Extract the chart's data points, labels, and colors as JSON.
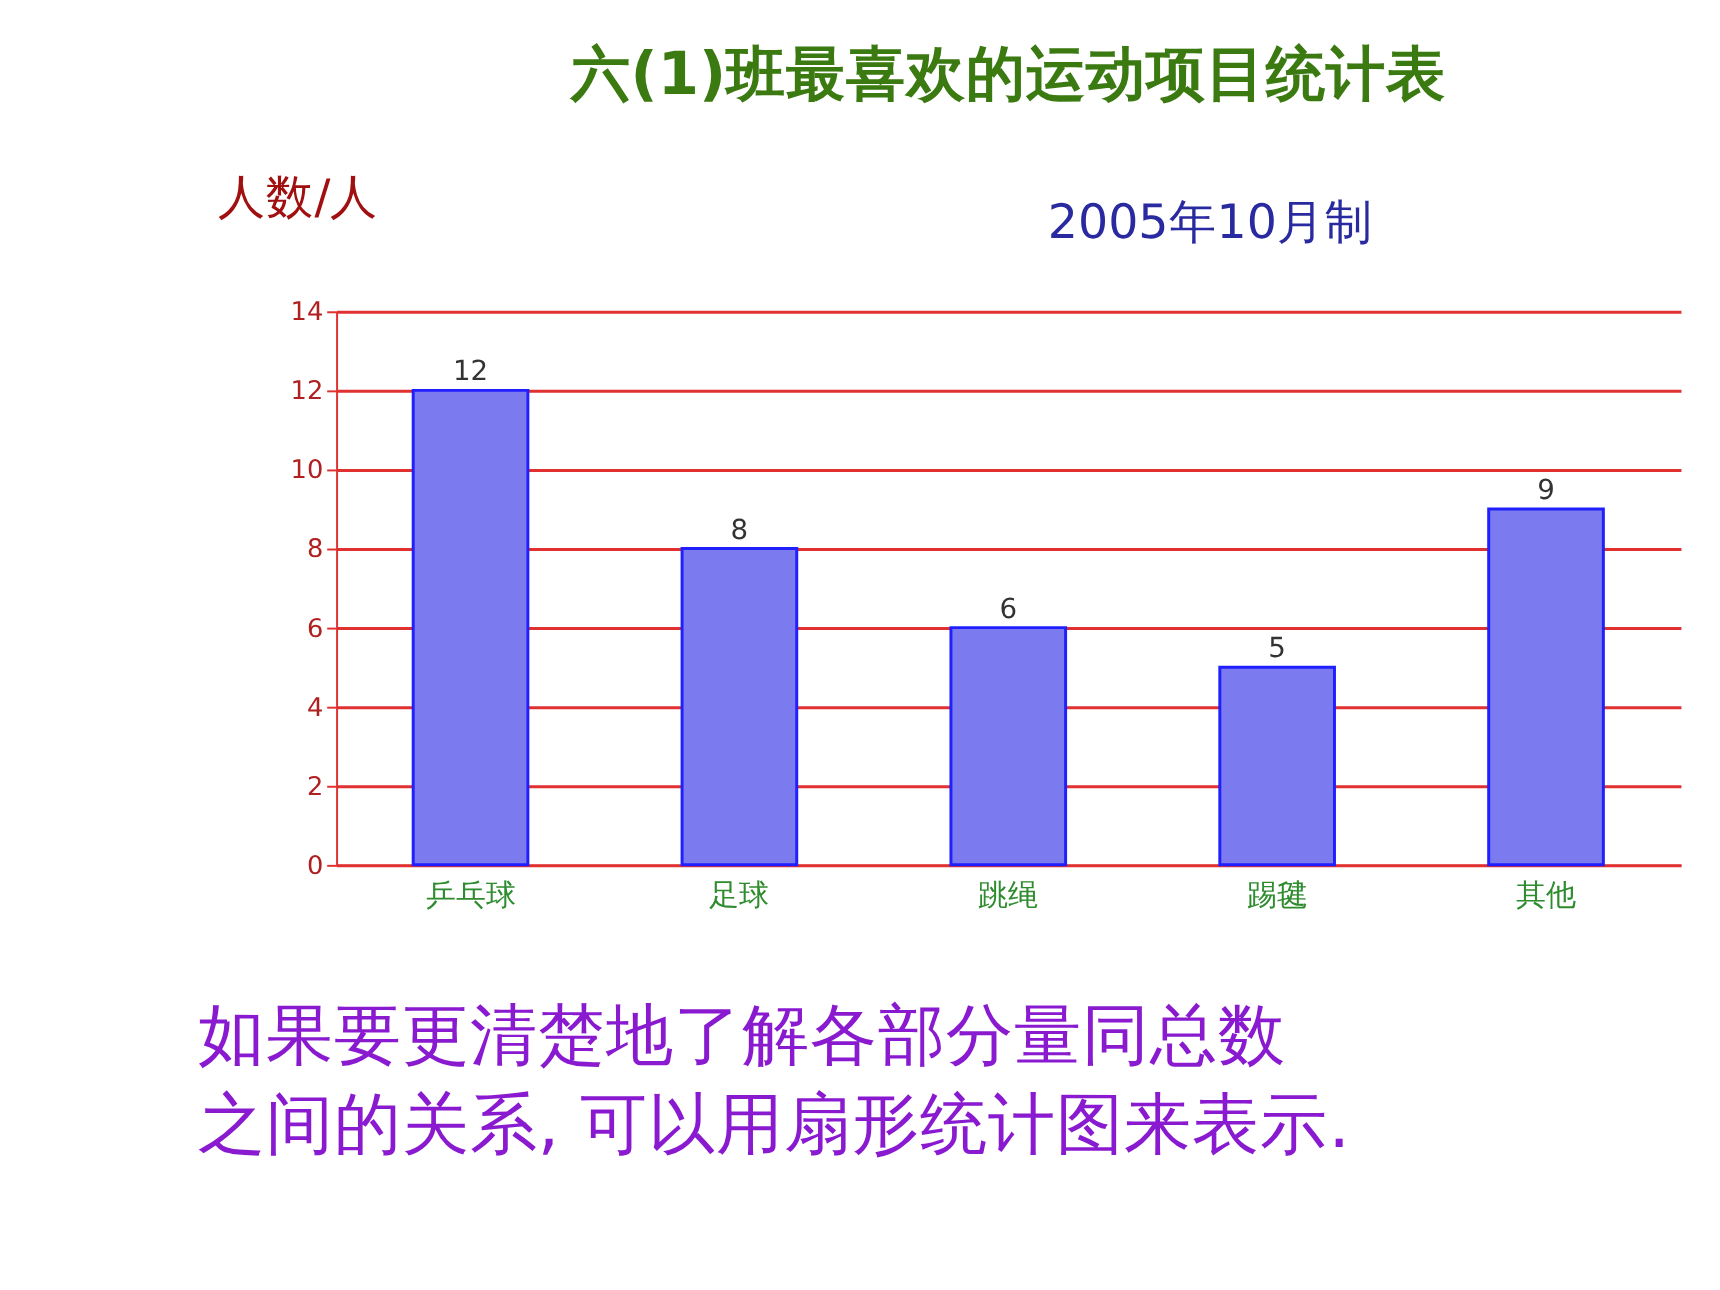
{
  "chart_data": {
    "type": "bar",
    "title": "六(1)班最喜欢的运动项目统计表",
    "subtitle": "2005年10月制",
    "ylabel": "人数/人",
    "categories": [
      "乒乓球",
      "足球",
      "跳绳",
      "踢毽",
      "其他"
    ],
    "values": [
      12,
      8,
      6,
      5,
      9
    ],
    "color": "#7b7bef",
    "ylim": [
      0,
      14
    ],
    "yticks": [
      0,
      2,
      4,
      6,
      8,
      10,
      12,
      14
    ],
    "grid": "y",
    "data_labels": true,
    "annotations": [
      "如果要更清楚地了解各部分量同总数之间的关系, 可以用扇形统计图来表示."
    ]
  }
}
